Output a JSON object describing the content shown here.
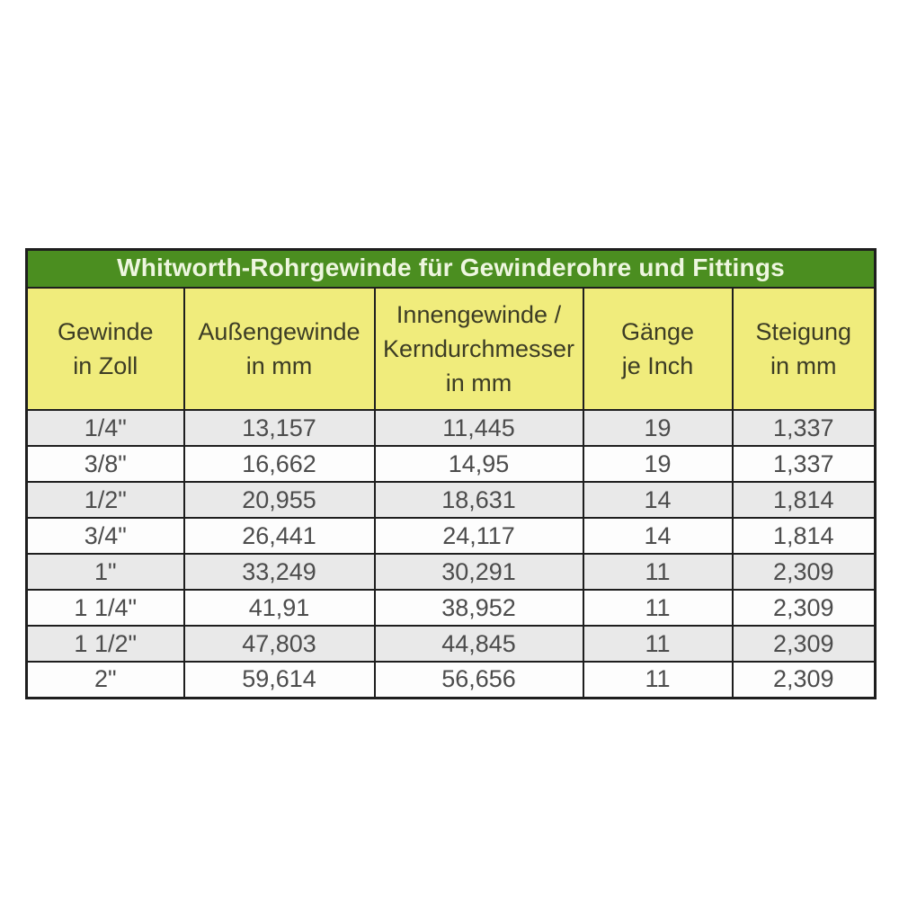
{
  "page": {
    "background_color": "#ffffff"
  },
  "table": {
    "title": "Whitworth-Rohrgewinde für Gewinderohre und Fittings",
    "headers": [
      "Gewinde\nin Zoll",
      "Außengewinde\nin mm",
      "Innengewinde /\nKerndurchmesser\nin mm",
      "Gänge\nje Inch",
      "Steigung\nin mm"
    ],
    "rows": [
      [
        "1/4\"",
        "13,157",
        "11,445",
        "19",
        "1,337"
      ],
      [
        "3/8\"",
        "16,662",
        "14,95",
        "19",
        "1,337"
      ],
      [
        "1/2\"",
        "20,955",
        "18,631",
        "14",
        "1,814"
      ],
      [
        "3/4\"",
        "26,441",
        "24,117",
        "14",
        "1,814"
      ],
      [
        "1\"",
        "33,249",
        "30,291",
        "11",
        "2,309"
      ],
      [
        "1 1/4\"",
        "41,91",
        "38,952",
        "11",
        "2,309"
      ],
      [
        "1 1/2\"",
        "47,803",
        "44,845",
        "11",
        "2,309"
      ],
      [
        "2\"",
        "59,614",
        "56,656",
        "11",
        "2,309"
      ]
    ],
    "colors": {
      "title_bg": "#4b8e20",
      "title_text": "#eef6df",
      "header_bg": "#f0ec7c",
      "header_text": "#3c3c25",
      "row_stripe_bg": "#e9e9e9",
      "row_plain_bg": "#fdfdfd",
      "border": "#1e1e1e",
      "cell_text": "#4c4c4c"
    }
  },
  "chart_data": {
    "type": "table",
    "title": "Whitworth-Rohrgewinde für Gewinderohre und Fittings",
    "columns": [
      "Gewinde in Zoll",
      "Außengewinde in mm",
      "Innengewinde / Kerndurchmesser in mm",
      "Gänge je Inch",
      "Steigung in mm"
    ],
    "rows": [
      [
        "1/4\"",
        "13,157",
        "11,445",
        "19",
        "1,337"
      ],
      [
        "3/8\"",
        "16,662",
        "14,95",
        "19",
        "1,337"
      ],
      [
        "1/2\"",
        "20,955",
        "18,631",
        "14",
        "1,814"
      ],
      [
        "3/4\"",
        "26,441",
        "24,117",
        "14",
        "1,814"
      ],
      [
        "1\"",
        "33,249",
        "30,291",
        "11",
        "2,309"
      ],
      [
        "1 1/4\"",
        "41,91",
        "38,952",
        "11",
        "2,309"
      ],
      [
        "1 1/2\"",
        "47,803",
        "44,845",
        "11",
        "2,309"
      ],
      [
        "2\"",
        "59,614",
        "56,656",
        "11",
        "2,309"
      ]
    ],
    "layout": {
      "striped_rows": true,
      "title_band_color": "#4b8e20",
      "header_band_color": "#f0ec7c"
    }
  }
}
